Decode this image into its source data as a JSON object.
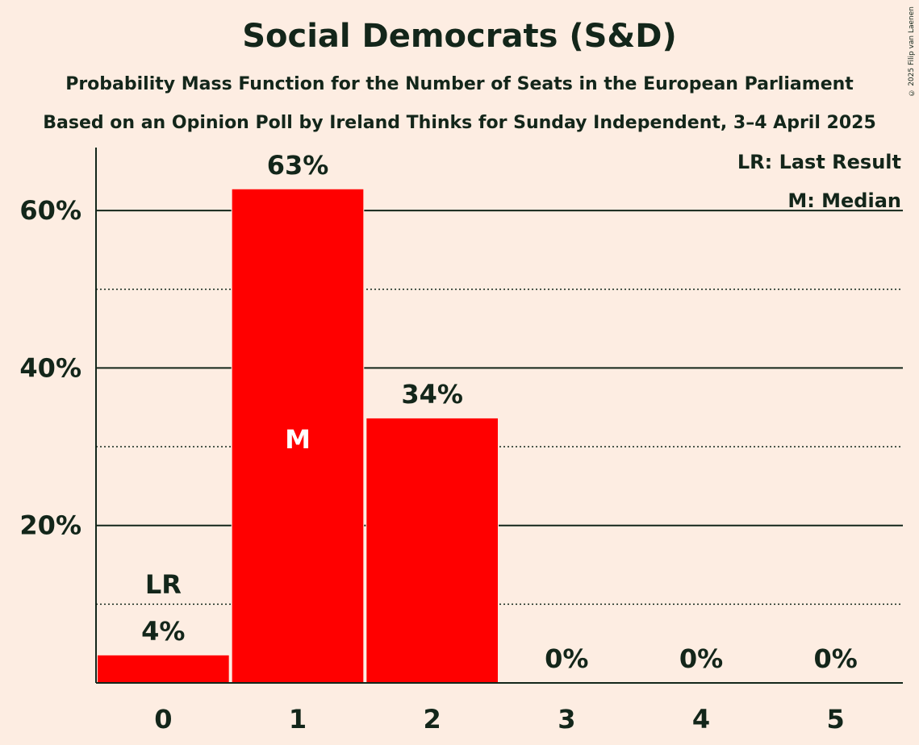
{
  "title": "Social Democrats (S&D)",
  "subtitle_1": "Probability Mass Function for the Number of Seats in the European Parliament",
  "subtitle_2": "Based on an Opinion Poll by Ireland Thinks for Sunday Independent, 3–4 April 2025",
  "copyright": "© 2025 Filip van Laenen",
  "legend": {
    "last_result": "LR: Last Result",
    "median": "M: Median"
  },
  "colors": {
    "bar": "#ff0000",
    "background": "#fdede2",
    "text": "#13261a"
  },
  "chart_data": {
    "type": "bar",
    "categories": [
      "0",
      "1",
      "2",
      "3",
      "4",
      "5"
    ],
    "values": [
      3.5,
      62.7,
      33.6,
      0,
      0,
      0
    ],
    "data_labels": [
      "4%",
      "63%",
      "34%",
      "0%",
      "0%",
      "0%"
    ],
    "ylim": [
      0,
      68
    ],
    "y_ticks": [
      20,
      40,
      60
    ],
    "y_tick_labels": [
      "20%",
      "40%",
      "60%"
    ],
    "minor_gridlines": [
      10,
      30,
      50
    ],
    "last_result_category": "0",
    "last_result_label": "LR",
    "median_category": "1",
    "median_label": "M",
    "grid": true,
    "legend_position": "top-right"
  }
}
